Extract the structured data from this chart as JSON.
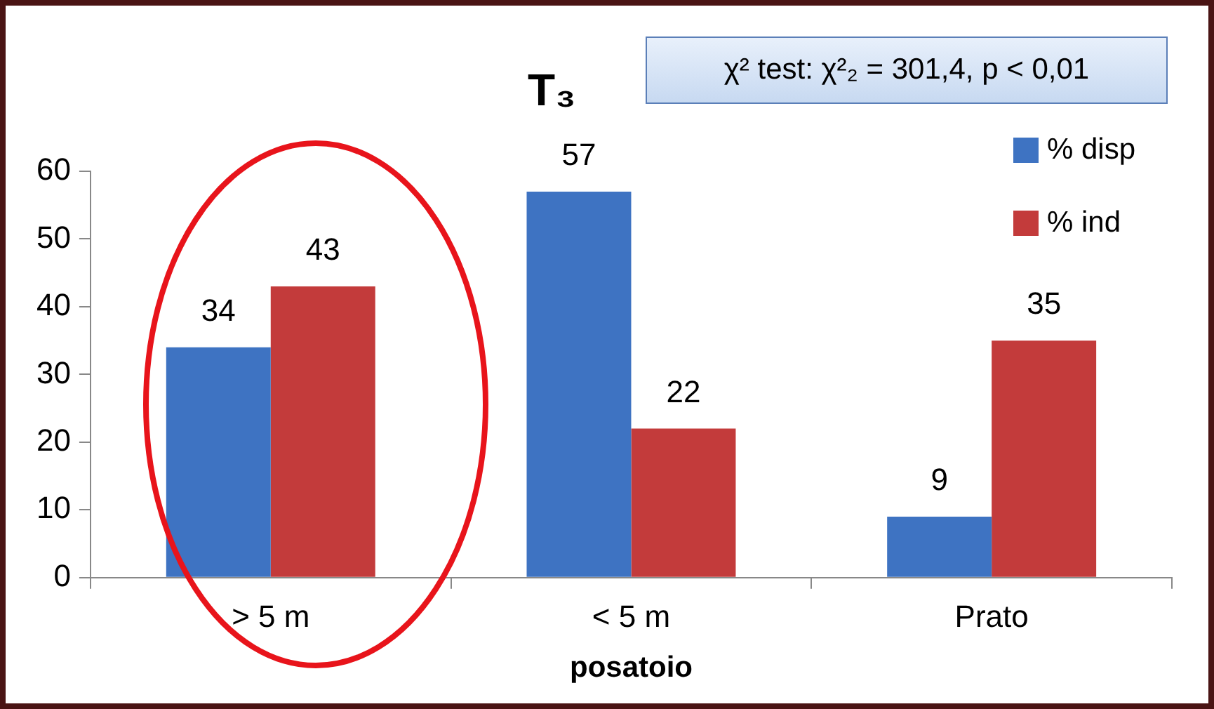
{
  "chart_data": {
    "type": "bar",
    "title": "T₃",
    "xlabel": "posatoio",
    "categories": [
      "> 5 m",
      "< 5 m",
      "Prato"
    ],
    "series": [
      {
        "name": "% disp",
        "color": "#3e73c2",
        "values": [
          34,
          57,
          9
        ]
      },
      {
        "name": "% ind",
        "color": "#c33b3b",
        "values": [
          43,
          22,
          35
        ]
      }
    ],
    "ylim": [
      0,
      60
    ],
    "yticks": [
      0,
      10,
      20,
      30,
      40,
      50,
      60
    ],
    "grid": false,
    "legend": "top right",
    "data_labels": true,
    "annotations": [
      "χ² test: χ²₂ =  301,4, p < 0,01"
    ]
  }
}
